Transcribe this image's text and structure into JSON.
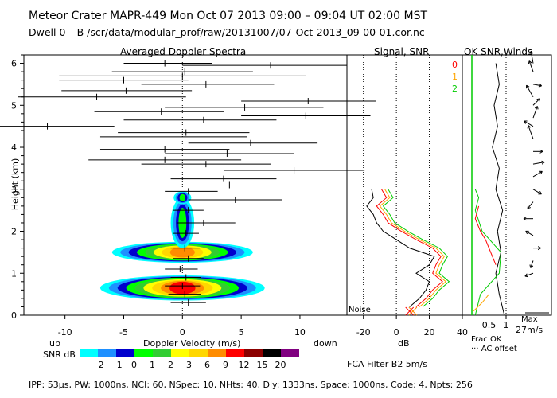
{
  "header": {
    "line1": "Meteor Crater   MAPR-449   Mon Oct 07 2013 09:00 – 09:04 UT 02:00 MST",
    "line2": "Dwell   0 –   B   /scr/data/modular_prof/raw/20131007/07-Oct-2013_09-00-01.cor.nc"
  },
  "panel_titles": {
    "spectra": "Averaged Doppler Spectra",
    "signal": "Signal, SNR",
    "snr_winds": "OK SNR,Winds"
  },
  "ok_legend": [
    "0",
    "1",
    "2"
  ],
  "ok_colors": [
    "#ff0000",
    "#ffa500",
    "#00cc00"
  ],
  "axis": {
    "ylabel": "Height (km)",
    "xlabel_spectra": "Doppler Velocity (m/s)",
    "xlabel_signal": "dB",
    "up": "up",
    "down": "down",
    "noise": "Noise",
    "frac_ok": "Frac OK",
    "ac_offset": "··· AC offset",
    "max_label": "Max",
    "max_value": "27m/s",
    "filter": "FCA Filter B2   5m/s"
  },
  "colorbar": {
    "title": "SNR dB",
    "labels": [
      "−2",
      "−1",
      "0",
      "1",
      "2",
      "3",
      "6",
      "9",
      "12",
      "15",
      "20"
    ],
    "colors": [
      "#00ffff",
      "#1e90ff",
      "#0000cd",
      "#00ff00",
      "#32cd32",
      "#ffff00",
      "#ffd700",
      "#ff8c00",
      "#ff0000",
      "#8b0000",
      "#000000",
      "#800080"
    ]
  },
  "footer": "IPP: 53μs,  PW: 1000ns,  NCI: 60,  NSpec: 10,  NHts: 40,  Dly: 1333ns,  Space: 1000ns,  Code: 4,  Npts: 256",
  "chart_data": [
    {
      "type": "heatmap",
      "title": "Averaged Doppler Spectra",
      "xlabel": "Doppler Velocity (m/s)",
      "ylabel": "Height (km)",
      "xlim": [
        -13.5,
        14
      ],
      "ylim": [
        0,
        6.2
      ],
      "xticks": [
        -10,
        -5,
        0,
        5,
        10
      ],
      "yticks": [
        0,
        1,
        2,
        3,
        4,
        5,
        6
      ],
      "radial_velocity_bars": [
        {
          "h": 6.0,
          "center": -1.5,
          "left": -5.0,
          "right": 2.5
        },
        {
          "h": 5.95,
          "center": 7.5,
          "left": 0.0,
          "right": 14.0
        },
        {
          "h": 5.8,
          "center": 0.2,
          "left": -6.0,
          "right": 6.0
        },
        {
          "h": 5.7,
          "center": 0.0,
          "left": -10.5,
          "right": 10.5
        },
        {
          "h": 5.6,
          "center": -5.0,
          "left": -10.5,
          "right": 0.5
        },
        {
          "h": 5.5,
          "center": 2.0,
          "left": -3.5,
          "right": 7.8
        },
        {
          "h": 5.35,
          "center": -4.8,
          "left": -10.3,
          "right": 0.8
        },
        {
          "h": 5.2,
          "center": -7.3,
          "left": -14.0,
          "right": 0.3
        },
        {
          "h": 5.1,
          "center": 10.7,
          "left": 5.0,
          "right": 16.5
        },
        {
          "h": 4.95,
          "center": 5.3,
          "left": -1.5,
          "right": 12.0
        },
        {
          "h": 4.85,
          "center": -1.8,
          "left": -7.5,
          "right": 3.5
        },
        {
          "h": 4.75,
          "center": 10.5,
          "left": 5.0,
          "right": 16.0
        },
        {
          "h": 4.65,
          "center": 1.8,
          "left": -5.0,
          "right": 8.0
        },
        {
          "h": 4.5,
          "center": -11.5,
          "left": -17.0,
          "right": -5.8
        },
        {
          "h": 4.35,
          "center": 0.3,
          "left": -5.5,
          "right": 5.7
        },
        {
          "h": 4.25,
          "center": -0.8,
          "left": -7.0,
          "right": 5.5
        },
        {
          "h": 4.1,
          "center": 5.8,
          "left": 0.5,
          "right": 11.5
        },
        {
          "h": 3.95,
          "center": -1.5,
          "left": -7.0,
          "right": 4.0
        },
        {
          "h": 3.85,
          "center": 3.8,
          "left": -1.5,
          "right": 9.5
        },
        {
          "h": 3.7,
          "center": -1.5,
          "left": -8.0,
          "right": 5.0
        },
        {
          "h": 3.6,
          "center": 2.0,
          "left": -3.5,
          "right": 7.5
        },
        {
          "h": 3.45,
          "center": 9.5,
          "left": 3.5,
          "right": 15.5
        },
        {
          "h": 3.25,
          "center": 3.5,
          "left": -1.0,
          "right": 8.0
        },
        {
          "h": 3.1,
          "center": 4.0,
          "left": 0.0,
          "right": 8.0
        },
        {
          "h": 2.95,
          "center": 0.5,
          "left": -1.5,
          "right": 3.0
        },
        {
          "h": 2.75,
          "center": 4.5,
          "left": 0.5,
          "right": 8.5
        },
        {
          "h": 2.5,
          "center": 0.5,
          "left": -0.8,
          "right": 1.8
        },
        {
          "h": 2.2,
          "center": 1.8,
          "left": -0.5,
          "right": 4.5
        },
        {
          "h": 1.95,
          "center": 0.3,
          "left": -0.8,
          "right": 1.4
        },
        {
          "h": 1.6,
          "center": 0.2,
          "left": -1.0,
          "right": 1.5
        },
        {
          "h": 1.35,
          "center": 0.5,
          "left": -0.8,
          "right": 1.8
        },
        {
          "h": 1.1,
          "center": -0.2,
          "left": -1.5,
          "right": 1.3
        },
        {
          "h": 0.9,
          "center": 0.3,
          "left": -1.0,
          "right": 1.6
        },
        {
          "h": 0.7,
          "center": 0.0,
          "left": -1.5,
          "right": 1.5
        },
        {
          "h": 0.5,
          "center": 0.2,
          "left": -1.2,
          "right": 1.6
        },
        {
          "h": 0.3,
          "center": 0.5,
          "left": -1.0,
          "right": 2.0
        }
      ],
      "snr_blobs": [
        {
          "h": 1.5,
          "v": 0.0,
          "width_v": 12,
          "thick_km": 0.5,
          "peak_db": 9
        },
        {
          "h": 0.65,
          "v": 0.0,
          "width_v": 14,
          "thick_km": 0.6,
          "peak_db": 12
        },
        {
          "h": 2.2,
          "v": 0.0,
          "width_v": 2,
          "thick_km": 1.2,
          "peak_db": 1
        },
        {
          "h": 2.8,
          "v": 0.0,
          "width_v": 1.5,
          "thick_km": 0.3,
          "peak_db": 1
        }
      ]
    },
    {
      "type": "line",
      "title": "Signal, SNR",
      "xlabel": "dB",
      "xlim": [
        -30,
        40
      ],
      "ylim": [
        0,
        6.2
      ],
      "xticks": [
        -20,
        0,
        20,
        40
      ],
      "series": [
        {
          "name": "0",
          "color": "#ff0000",
          "h": [
            0.2,
            0.4,
            0.6,
            0.8,
            1.0,
            1.2,
            1.4,
            1.6,
            1.8,
            2.0,
            2.2,
            2.4,
            2.6,
            2.8,
            3.0
          ],
          "db": [
            12,
            18,
            22,
            28,
            22,
            24,
            27,
            22,
            12,
            3,
            -5,
            -8,
            -12,
            -6,
            -9
          ]
        },
        {
          "name": "1",
          "color": "#ffa500",
          "h": [
            0.2,
            0.4,
            0.6,
            0.8,
            1.0,
            1.2,
            1.4,
            1.6,
            1.8,
            2.0,
            2.2,
            2.4,
            2.6,
            2.8,
            3.0
          ],
          "db": [
            14,
            20,
            24,
            30,
            24,
            26,
            29,
            24,
            14,
            5,
            -3,
            -6,
            -10,
            -4,
            -7
          ]
        },
        {
          "name": "2",
          "color": "#00cc00",
          "h": [
            0.2,
            0.4,
            0.6,
            0.8,
            1.0,
            1.2,
            1.4,
            1.6,
            1.8,
            2.0,
            2.2,
            2.4,
            2.6,
            2.8,
            3.0
          ],
          "db": [
            16,
            22,
            26,
            32,
            26,
            28,
            31,
            26,
            16,
            7,
            -1,
            -4,
            -8,
            -2,
            -5
          ]
        },
        {
          "name": "signal",
          "color": "#000000",
          "h": [
            0.2,
            0.4,
            0.6,
            0.8,
            1.0,
            1.2,
            1.4,
            1.6,
            1.8,
            2.0,
            2.2,
            2.4,
            2.6,
            2.8,
            3.0
          ],
          "db": [
            8,
            14,
            18,
            20,
            12,
            20,
            23,
            8,
            0,
            -8,
            -12,
            -14,
            -18,
            -14,
            -15
          ]
        }
      ],
      "noise_markers_db": [
        8,
        10
      ]
    },
    {
      "type": "line",
      "title": "OK SNR,Winds",
      "xlabel": "Frac OK",
      "xlim": [
        0,
        1
      ],
      "xticks": [
        0.5,
        1
      ],
      "series": [
        {
          "name": "frac_ok_black",
          "color": "#000000",
          "h": [
            0.0,
            0.5,
            1.0,
            1.5,
            2.0,
            2.5,
            3.0,
            3.5,
            4.0,
            4.5,
            5.0,
            5.5,
            6.0
          ],
          "frac": [
            0.95,
            0.8,
            0.7,
            0.85,
            0.75,
            0.9,
            0.7,
            0.8,
            0.6,
            0.75,
            0.65,
            0.8,
            0.7
          ]
        },
        {
          "name": "frac_ok_green",
          "color": "#00cc00",
          "h": [
            0.0,
            0.5,
            1.0,
            1.5,
            2.0,
            2.5,
            2.8,
            3.0
          ],
          "frac": [
            0.1,
            0.25,
            0.8,
            0.85,
            0.3,
            0.1,
            0.2,
            0.1
          ]
        },
        {
          "name": "frac_ok_red",
          "color": "#ff0000",
          "h": [
            1.2,
            1.5,
            1.8,
            2.0,
            2.3,
            2.6
          ],
          "frac": [
            0.7,
            0.55,
            0.4,
            0.25,
            0.1,
            0.2
          ]
        },
        {
          "name": "frac_ok_orange",
          "color": "#ffa500",
          "h": [
            0.1,
            0.3,
            0.5
          ],
          "frac": [
            0.05,
            0.3,
            0.5
          ]
        }
      ],
      "wind_barbs": [
        {
          "h": 6.0,
          "dir": 350,
          "spd": 8
        },
        {
          "h": 5.8,
          "dir": 340,
          "spd": 7
        },
        {
          "h": 5.5,
          "dir": 100,
          "spd": 4
        },
        {
          "h": 5.2,
          "dir": 330,
          "spd": 9
        },
        {
          "h": 5.0,
          "dir": 45,
          "spd": 5
        },
        {
          "h": 4.7,
          "dir": 20,
          "spd": 8
        },
        {
          "h": 4.5,
          "dir": 300,
          "spd": 6
        },
        {
          "h": 4.2,
          "dir": 340,
          "spd": 10
        },
        {
          "h": 3.9,
          "dir": 90,
          "spd": 5
        },
        {
          "h": 3.6,
          "dir": 80,
          "spd": 7
        },
        {
          "h": 3.3,
          "dir": 60,
          "spd": 6
        },
        {
          "h": 3.0,
          "dir": 120,
          "spd": 5
        },
        {
          "h": 2.7,
          "dir": 220,
          "spd": 4
        },
        {
          "h": 2.3,
          "dir": 270,
          "spd": 5
        },
        {
          "h": 1.9,
          "dir": 300,
          "spd": 4
        },
        {
          "h": 1.6,
          "dir": 90,
          "spd": 3
        },
        {
          "h": 1.3,
          "dir": 200,
          "spd": 3
        },
        {
          "h": 1.0,
          "dir": 250,
          "spd": 4
        }
      ]
    }
  ]
}
